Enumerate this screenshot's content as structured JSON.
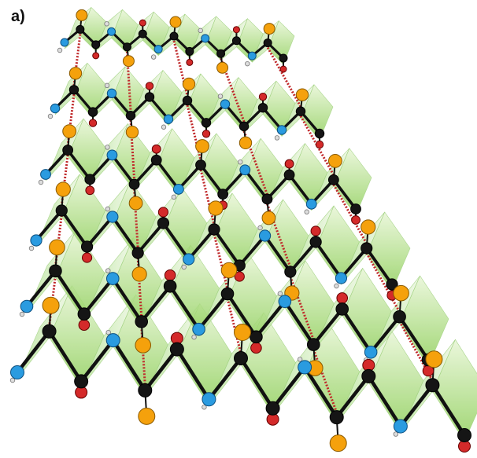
{
  "label": "a)"
}
